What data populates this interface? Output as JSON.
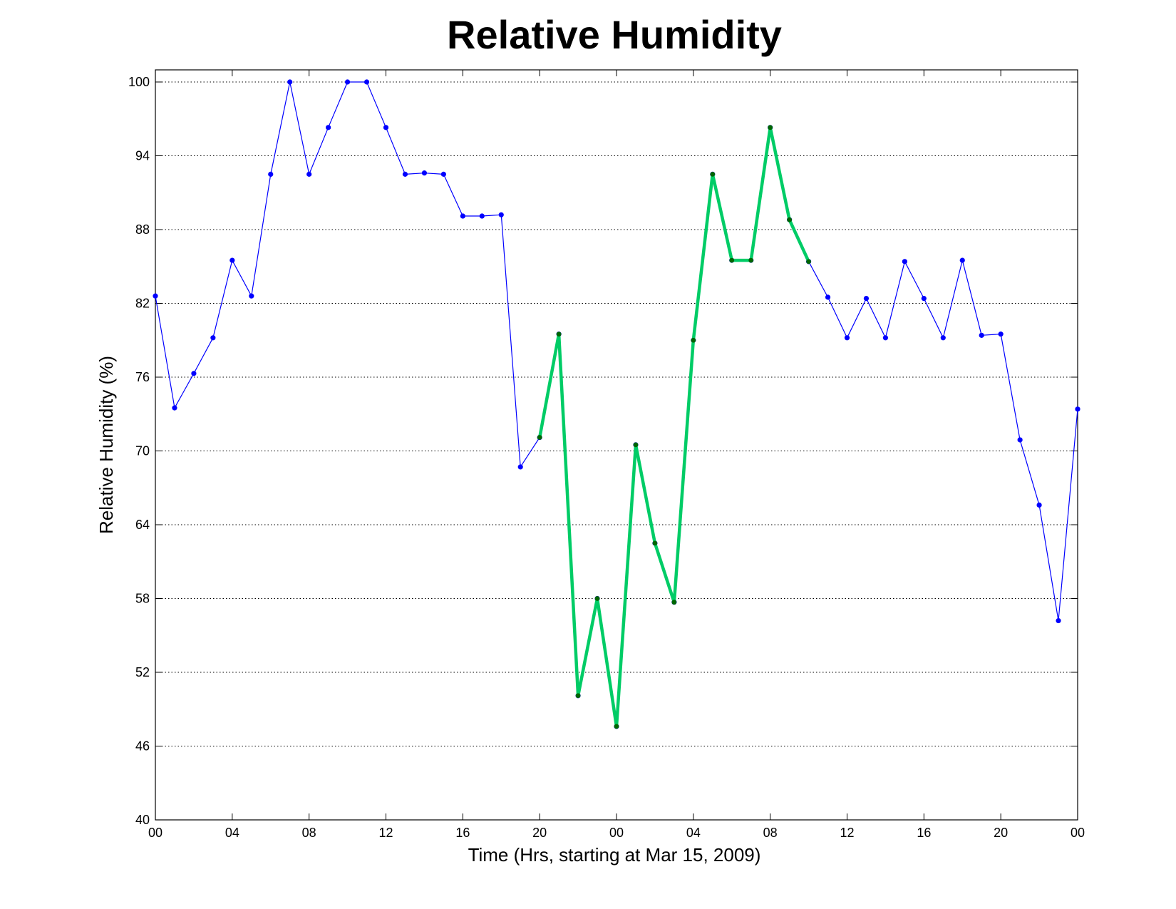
{
  "chart_data": {
    "type": "line",
    "title": "Relative Humidity",
    "xlabel": "Time (Hrs, starting at Mar 15, 2009)",
    "ylabel": "Relative Humidity (%)",
    "xlim": [
      0,
      48
    ],
    "ylim": [
      40,
      100
    ],
    "yticks": [
      40,
      46,
      52,
      58,
      64,
      70,
      76,
      82,
      88,
      94,
      100
    ],
    "xticks": [
      0,
      4,
      8,
      12,
      16,
      20,
      24,
      28,
      32,
      36,
      40,
      44,
      48
    ],
    "xtick_labels": [
      "00",
      "04",
      "08",
      "12",
      "16",
      "20",
      "00",
      "04",
      "08",
      "12",
      "16",
      "20",
      "00"
    ],
    "grid": "horizontal dotted",
    "series": [
      {
        "color": "#0000ff",
        "marker_color": "#0000ff",
        "x": [
          0,
          1,
          2,
          3,
          4,
          5,
          6,
          7,
          8,
          9,
          10,
          11,
          12,
          13,
          14,
          15,
          16,
          17,
          18,
          19,
          20,
          21,
          22,
          23,
          24,
          25,
          26,
          27,
          28,
          29,
          30,
          31,
          32,
          33,
          34,
          35,
          36,
          37,
          38,
          39,
          40,
          41,
          42,
          43,
          44,
          45,
          46,
          47,
          48
        ],
        "y": [
          82.6,
          73.5,
          76.3,
          79.2,
          85.5,
          82.6,
          92.5,
          100,
          92.5,
          96.3,
          100,
          100,
          96.3,
          92.5,
          92.6,
          92.5,
          89.1,
          89.1,
          89.2,
          68.7,
          71.1,
          79.5,
          50.1,
          58.0,
          47.6,
          70.5,
          62.5,
          57.7,
          79.0,
          92.5,
          85.5,
          85.5,
          96.3,
          88.8,
          85.4,
          82.5,
          79.2,
          82.4,
          79.2,
          85.4,
          82.4,
          79.2,
          85.5,
          79.4,
          79.5,
          70.9,
          65.6,
          56.2,
          73.4
        ]
      },
      {
        "color": "#00cc66",
        "marker_color": "#006600",
        "x": [
          20,
          21,
          22,
          23,
          24,
          25,
          26,
          27,
          28,
          29,
          30,
          31,
          32,
          33,
          34
        ],
        "y": [
          71.1,
          79.5,
          50.1,
          58.0,
          47.6,
          70.5,
          62.5,
          57.7,
          79.0,
          92.5,
          85.5,
          85.5,
          96.3,
          88.8,
          85.4
        ]
      }
    ]
  }
}
